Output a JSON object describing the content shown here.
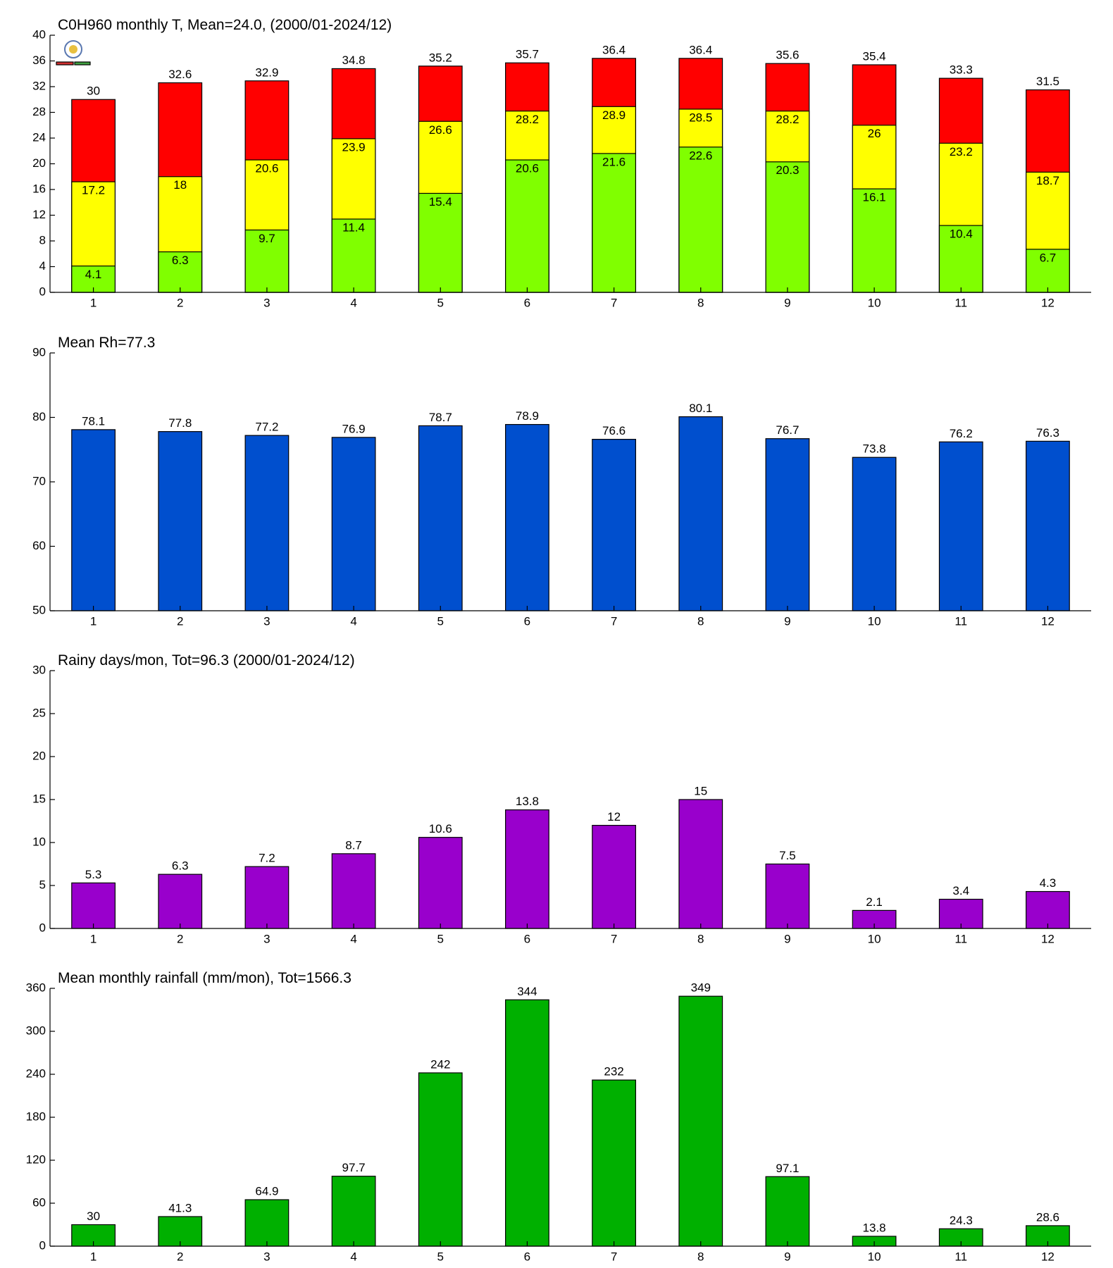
{
  "chart_data": [
    {
      "type": "bar",
      "title": "C0H960 monthly T, Mean=24.0, (2000/01-2024/12)",
      "categories": [
        "1",
        "2",
        "3",
        "4",
        "5",
        "6",
        "7",
        "8",
        "9",
        "10",
        "11",
        "12"
      ],
      "series": [
        {
          "color": "#ff0000",
          "values": [
            30,
            32.6,
            32.9,
            34.8,
            35.2,
            35.7,
            36.4,
            36.4,
            35.6,
            35.4,
            33.3,
            31.5
          ]
        },
        {
          "color": "#ffff00",
          "values": [
            17.2,
            18,
            20.6,
            23.9,
            26.6,
            28.2,
            28.9,
            28.5,
            28.2,
            26,
            23.2,
            18.7
          ]
        },
        {
          "color": "#80ff00",
          "values": [
            4.1,
            6.3,
            9.7,
            11.4,
            15.4,
            20.6,
            21.6,
            22.6,
            20.3,
            16.1,
            10.4,
            6.7
          ]
        }
      ],
      "ylim": [
        0,
        40
      ],
      "yticks": [
        0,
        4,
        8,
        12,
        16,
        20,
        24,
        28,
        32,
        36,
        40
      ]
    },
    {
      "type": "bar",
      "title": "Mean Rh=77.3",
      "categories": [
        "1",
        "2",
        "3",
        "4",
        "5",
        "6",
        "7",
        "8",
        "9",
        "10",
        "11",
        "12"
      ],
      "series": [
        {
          "color": "#004fce",
          "values": [
            78.1,
            77.8,
            77.2,
            76.9,
            78.7,
            78.9,
            76.6,
            80.1,
            76.7,
            73.8,
            76.2,
            76.3
          ]
        }
      ],
      "ylim": [
        50,
        90
      ],
      "yticks": [
        50,
        60,
        70,
        80,
        90
      ]
    },
    {
      "type": "bar",
      "title": "Rainy days/mon, Tot=96.3 (2000/01-2024/12)",
      "categories": [
        "1",
        "2",
        "3",
        "4",
        "5",
        "6",
        "7",
        "8",
        "9",
        "10",
        "11",
        "12"
      ],
      "series": [
        {
          "color": "#9900cc",
          "values": [
            5.3,
            6.3,
            7.2,
            8.7,
            10.6,
            13.8,
            12,
            15,
            7.5,
            2.1,
            3.4,
            4.3
          ]
        }
      ],
      "ylim": [
        0,
        30
      ],
      "yticks": [
        0,
        5,
        10,
        15,
        20,
        25,
        30
      ]
    },
    {
      "type": "bar",
      "title": "Mean monthly rainfall (mm/mon), Tot=1566.3",
      "categories": [
        "1",
        "2",
        "3",
        "4",
        "5",
        "6",
        "7",
        "8",
        "9",
        "10",
        "11",
        "12"
      ],
      "series": [
        {
          "color": "#00b000",
          "values": [
            30,
            41.3,
            64.9,
            97.7,
            242,
            344,
            232,
            349,
            97.1,
            13.8,
            24.3,
            28.6
          ]
        }
      ],
      "ylim": [
        0,
        360
      ],
      "yticks": [
        0,
        60,
        120,
        180,
        240,
        300,
        360
      ]
    }
  ]
}
